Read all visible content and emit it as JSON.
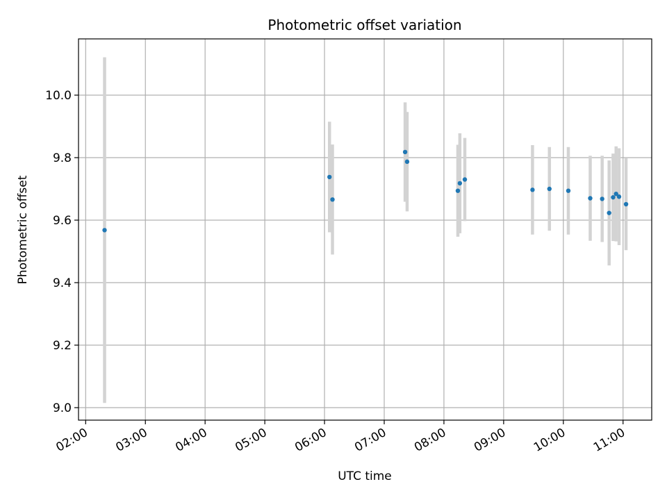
{
  "chart_data": {
    "type": "scatter",
    "title": "Photometric offset variation",
    "xlabel": "UTC time",
    "ylabel": "Photometric offset",
    "x_unit": "UTC hour",
    "xlim": [
      1.88,
      11.48
    ],
    "ylim": [
      8.96,
      10.18
    ],
    "grid": true,
    "xticks": [
      2,
      3,
      4,
      5,
      6,
      7,
      8,
      9,
      10,
      11
    ],
    "xtick_labels": [
      "02:00",
      "03:00",
      "04:00",
      "05:00",
      "06:00",
      "07:00",
      "08:00",
      "09:00",
      "10:00",
      "11:00"
    ],
    "yticks": [
      9.0,
      9.2,
      9.4,
      9.6,
      9.8,
      10.0
    ],
    "ytick_labels": [
      "9.0",
      "9.2",
      "9.4",
      "9.6",
      "9.8",
      "10.0"
    ],
    "colors": {
      "point": "#1f77b4",
      "errorbar": "#d3d3d3",
      "grid": "#b0b0b0"
    },
    "series": [
      {
        "points": [
          {
            "x": "02:19",
            "y": 9.568,
            "err": 0.553
          },
          {
            "x": "06:05",
            "y": 9.738,
            "err": 0.177
          },
          {
            "x": "06:08",
            "y": 9.666,
            "err": 0.176
          },
          {
            "x": "07:21",
            "y": 9.818,
            "err": 0.159
          },
          {
            "x": "07:23",
            "y": 9.787,
            "err": 0.159
          },
          {
            "x": "08:14",
            "y": 9.694,
            "err": 0.147
          },
          {
            "x": "08:16",
            "y": 9.718,
            "err": 0.16
          },
          {
            "x": "08:21",
            "y": 9.73,
            "err": 0.133
          },
          {
            "x": "09:29",
            "y": 9.697,
            "err": 0.143
          },
          {
            "x": "09:46",
            "y": 9.7,
            "err": 0.134
          },
          {
            "x": "10:05",
            "y": 9.694,
            "err": 0.14
          },
          {
            "x": "10:27",
            "y": 9.67,
            "err": 0.136
          },
          {
            "x": "10:39",
            "y": 9.668,
            "err": 0.138
          },
          {
            "x": "10:46",
            "y": 9.623,
            "err": 0.168
          },
          {
            "x": "10:50",
            "y": 9.673,
            "err": 0.14
          },
          {
            "x": "10:53",
            "y": 9.684,
            "err": 0.152
          },
          {
            "x": "10:56",
            "y": 9.675,
            "err": 0.155
          },
          {
            "x": "11:03",
            "y": 9.651,
            "err": 0.147
          }
        ]
      }
    ]
  }
}
